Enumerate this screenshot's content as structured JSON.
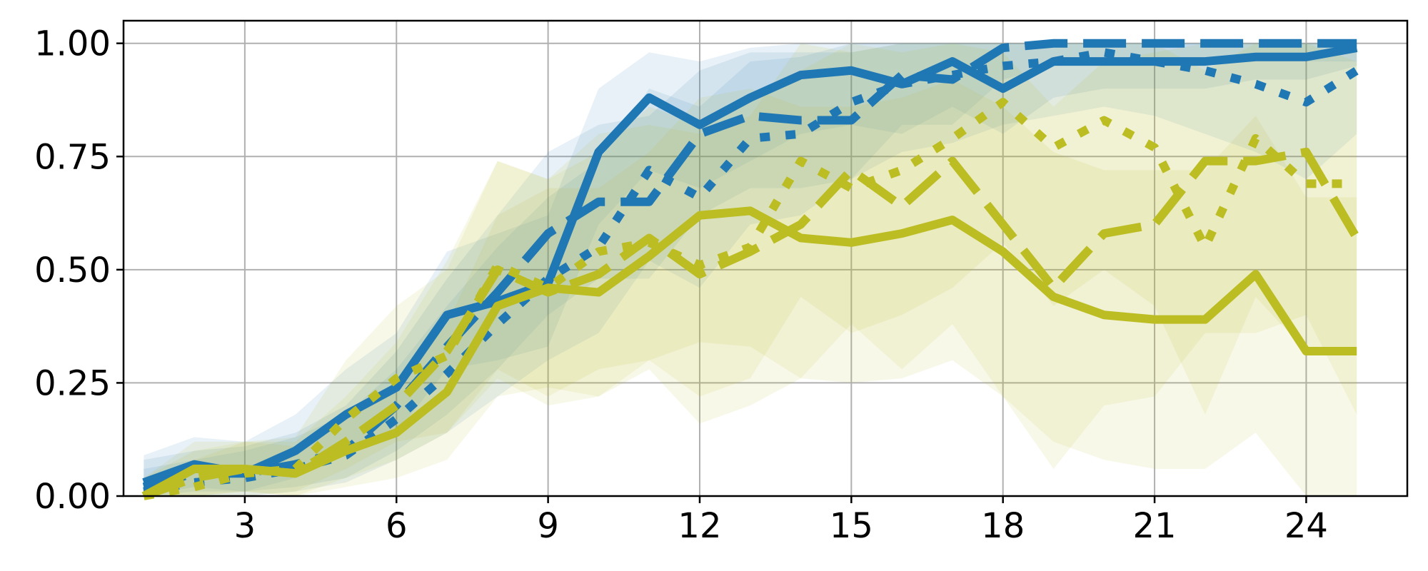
{
  "chart_data": {
    "type": "line",
    "title": "",
    "xlabel": "",
    "ylabel": "",
    "xlim": [
      0.6,
      26
    ],
    "ylim": [
      0,
      1.05
    ],
    "x_ticks": [
      3,
      6,
      9,
      12,
      15,
      18,
      21,
      24
    ],
    "y_ticks": [
      0.0,
      0.25,
      0.5,
      0.75,
      1.0
    ],
    "x_tick_labels": [
      "3",
      "6",
      "9",
      "12",
      "15",
      "18",
      "21",
      "24"
    ],
    "y_tick_labels": [
      "0.00",
      "0.25",
      "0.50",
      "0.75",
      "1.00"
    ],
    "grid": true,
    "legend": "none",
    "x": [
      1,
      2,
      3,
      4,
      5,
      6,
      7,
      8,
      9,
      10,
      11,
      12,
      13,
      14,
      15,
      16,
      17,
      18,
      19,
      20,
      21,
      22,
      23,
      24,
      25
    ],
    "colors": {
      "blue": "#1f77b4",
      "olive": "#bcbd22"
    },
    "series": [
      {
        "color": "#1f77b4",
        "dash": "solid",
        "values": [
          0.03,
          0.07,
          0.05,
          0.1,
          0.18,
          0.24,
          0.4,
          0.43,
          0.47,
          0.76,
          0.88,
          0.82,
          0.88,
          0.93,
          0.94,
          0.91,
          0.96,
          0.9,
          0.96,
          0.96,
          0.96,
          0.96,
          0.97,
          0.97,
          0.99
        ],
        "lower": [
          0.0,
          0.02,
          0.01,
          0.04,
          0.1,
          0.14,
          0.28,
          0.3,
          0.33,
          0.6,
          0.72,
          0.68,
          0.74,
          0.8,
          0.82,
          0.8,
          0.86,
          0.8,
          0.88,
          0.9,
          0.9,
          0.9,
          0.92,
          0.92,
          0.95
        ],
        "upper": [
          0.09,
          0.13,
          0.12,
          0.18,
          0.28,
          0.36,
          0.54,
          0.58,
          0.62,
          0.9,
          0.98,
          0.96,
          0.99,
          1.0,
          1.0,
          1.0,
          1.0,
          1.0,
          1.0,
          1.0,
          1.0,
          1.0,
          1.0,
          1.0,
          1.0
        ]
      },
      {
        "color": "#1f77b4",
        "dash": "dashed",
        "values": [
          0.02,
          0.05,
          0.05,
          0.07,
          0.1,
          0.2,
          0.33,
          0.45,
          0.58,
          0.65,
          0.65,
          0.8,
          0.84,
          0.83,
          0.83,
          0.93,
          0.92,
          0.99,
          1.0,
          1.0,
          1.0,
          1.0,
          1.0,
          1.0,
          1.0
        ],
        "lower": [
          0.0,
          0.01,
          0.01,
          0.02,
          0.04,
          0.1,
          0.18,
          0.28,
          0.4,
          0.48,
          0.48,
          0.62,
          0.68,
          0.68,
          0.7,
          0.82,
          0.82,
          0.92,
          0.95,
          0.96,
          0.96,
          0.96,
          0.96,
          0.96,
          0.96
        ],
        "upper": [
          0.08,
          0.1,
          0.11,
          0.14,
          0.2,
          0.32,
          0.48,
          0.62,
          0.76,
          0.82,
          0.84,
          0.94,
          0.98,
          0.98,
          0.98,
          1.0,
          1.0,
          1.0,
          1.0,
          1.0,
          1.0,
          1.0,
          1.0,
          1.0,
          1.0
        ]
      },
      {
        "color": "#1f77b4",
        "dash": "dotted",
        "values": [
          0.01,
          0.03,
          0.04,
          0.06,
          0.09,
          0.17,
          0.27,
          0.38,
          0.48,
          0.55,
          0.72,
          0.66,
          0.79,
          0.8,
          0.87,
          0.91,
          0.93,
          0.95,
          0.96,
          0.98,
          0.96,
          0.94,
          0.91,
          0.87,
          0.94
        ],
        "lower": [
          0.0,
          0.0,
          0.0,
          0.01,
          0.03,
          0.08,
          0.14,
          0.22,
          0.3,
          0.36,
          0.52,
          0.46,
          0.6,
          0.62,
          0.7,
          0.76,
          0.78,
          0.82,
          0.84,
          0.86,
          0.84,
          0.8,
          0.76,
          0.7,
          0.8
        ],
        "upper": [
          0.06,
          0.08,
          0.1,
          0.13,
          0.18,
          0.28,
          0.42,
          0.55,
          0.66,
          0.74,
          0.9,
          0.86,
          0.96,
          0.97,
          1.0,
          1.0,
          1.0,
          1.0,
          1.0,
          1.0,
          1.0,
          1.0,
          1.0,
          1.0,
          1.0
        ]
      },
      {
        "color": "#bcbd22",
        "dash": "solid",
        "values": [
          0.0,
          0.06,
          0.06,
          0.05,
          0.1,
          0.14,
          0.23,
          0.42,
          0.46,
          0.45,
          0.53,
          0.62,
          0.63,
          0.57,
          0.56,
          0.58,
          0.61,
          0.54,
          0.44,
          0.4,
          0.39,
          0.39,
          0.49,
          0.32,
          0.32
        ],
        "lower": [
          0.0,
          0.0,
          0.01,
          0.0,
          0.02,
          0.04,
          0.08,
          0.22,
          0.24,
          0.22,
          0.3,
          0.34,
          0.33,
          0.26,
          0.25,
          0.26,
          0.3,
          0.22,
          0.12,
          0.08,
          0.06,
          0.06,
          0.14,
          0.0,
          0.0
        ],
        "upper": [
          0.04,
          0.12,
          0.12,
          0.11,
          0.18,
          0.24,
          0.38,
          0.62,
          0.68,
          0.68,
          0.76,
          0.88,
          0.9,
          0.86,
          0.86,
          0.88,
          0.92,
          0.86,
          0.76,
          0.72,
          0.72,
          0.72,
          0.84,
          0.66,
          0.66
        ]
      },
      {
        "color": "#bcbd22",
        "dash": "dashed",
        "values": [
          0.0,
          0.04,
          0.06,
          0.05,
          0.12,
          0.2,
          0.32,
          0.5,
          0.45,
          0.49,
          0.57,
          0.49,
          0.54,
          0.6,
          0.72,
          0.64,
          0.74,
          0.6,
          0.46,
          0.58,
          0.6,
          0.74,
          0.74,
          0.76,
          0.57
        ],
        "lower": [
          0.0,
          0.0,
          0.01,
          0.0,
          0.04,
          0.08,
          0.14,
          0.26,
          0.2,
          0.22,
          0.28,
          0.16,
          0.2,
          0.26,
          0.38,
          0.28,
          0.38,
          0.22,
          0.06,
          0.2,
          0.22,
          0.36,
          0.36,
          0.4,
          0.18
        ],
        "upper": [
          0.04,
          0.1,
          0.12,
          0.12,
          0.22,
          0.34,
          0.52,
          0.74,
          0.7,
          0.76,
          0.86,
          0.82,
          0.88,
          0.94,
          1.0,
          0.98,
          1.0,
          0.98,
          0.86,
          0.96,
          0.98,
          1.0,
          1.0,
          1.0,
          0.96
        ]
      },
      {
        "color": "#bcbd22",
        "dash": "dotted",
        "values": [
          0.0,
          0.02,
          0.05,
          0.06,
          0.17,
          0.26,
          0.31,
          0.51,
          0.46,
          0.54,
          0.56,
          0.51,
          0.55,
          0.74,
          0.68,
          0.72,
          0.79,
          0.87,
          0.77,
          0.83,
          0.77,
          0.55,
          0.79,
          0.69,
          0.69
        ],
        "lower": [
          0.0,
          0.0,
          0.0,
          0.01,
          0.06,
          0.12,
          0.14,
          0.28,
          0.22,
          0.28,
          0.3,
          0.22,
          0.26,
          0.44,
          0.36,
          0.4,
          0.46,
          0.56,
          0.42,
          0.5,
          0.42,
          0.18,
          0.44,
          0.32,
          0.32
        ],
        "upper": [
          0.03,
          0.08,
          0.12,
          0.13,
          0.3,
          0.42,
          0.5,
          0.74,
          0.7,
          0.8,
          0.82,
          0.8,
          0.84,
          1.0,
          0.98,
          1.0,
          1.0,
          1.0,
          1.0,
          1.0,
          1.0,
          0.94,
          1.0,
          1.0,
          1.0
        ]
      }
    ]
  }
}
